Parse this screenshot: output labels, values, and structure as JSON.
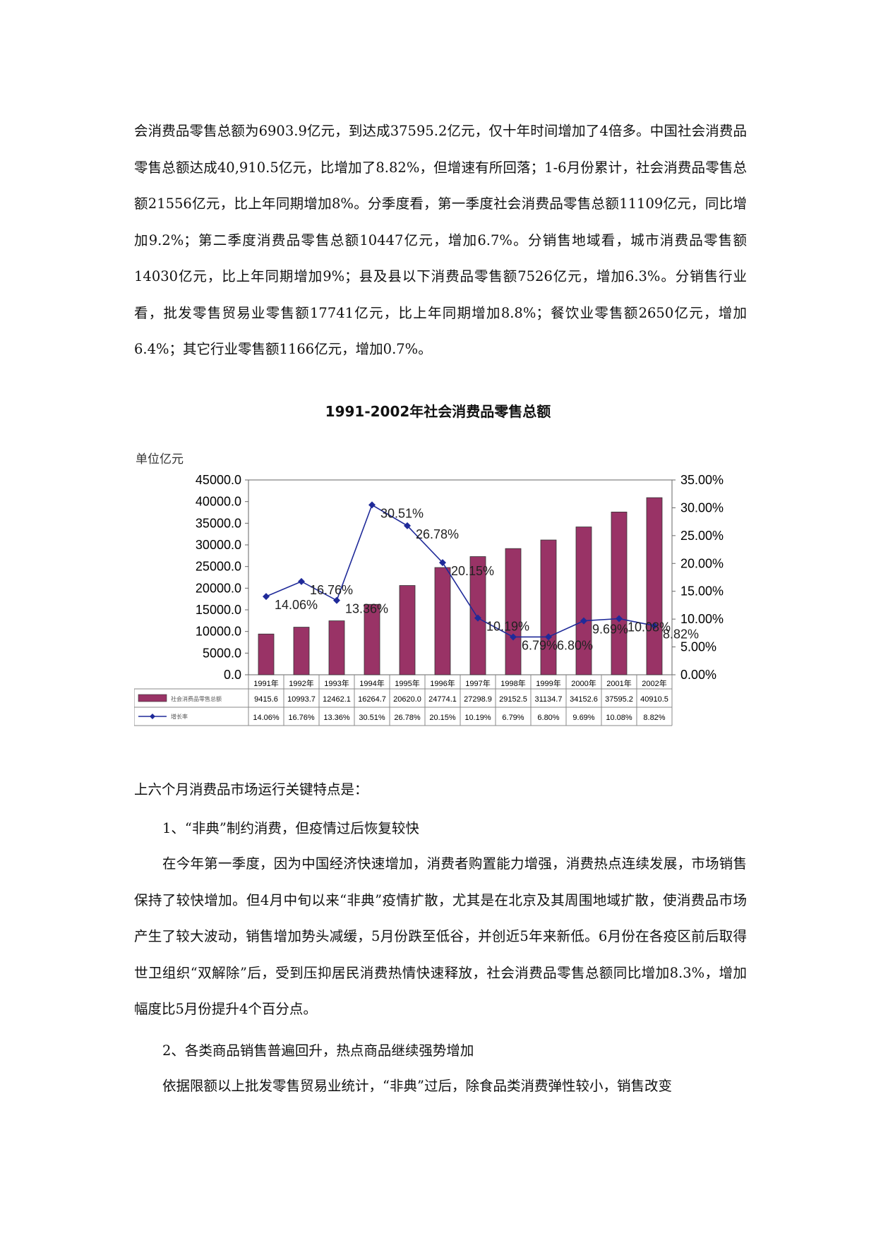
{
  "paragraphs": {
    "intro": "会消费品零售总额为6903.9亿元，到达成37595.2亿元，仅十年时间增加了4倍多。中国社会消费品零售总额达成40,910.5亿元，比增加了8.82%，但增速有所回落；1-6月份累计，社会消费品零售总额21556亿元，比上年同期增加8%。分季度看，第一季度社会消费品零售总额11109亿元，同比增加9.2%；第二季度消费品零售总额10447亿元，增加6.7%。分销售地域看，城市消费品零售额14030亿元，比上年同期增加9%；县及县以下消费品零售额7526亿元，增加6.3%。分销售行业看，批发零售贸易业零售额17741亿元，比上年同期增加8.8%；餐饮业零售额2650亿元，增加6.4%；其它行业零售额1166亿元，增加0.7%。",
    "market_intro": "上六个月消费品市场运行关键特点是：",
    "point1_heading": "1、“非典”制约消费，但疫情过后恢复较快",
    "point1_body": "在今年第一季度，因为中国经济快速增加，消费者购置能力增强，消费热点连续发展，市场销售保持了较快增加。但4月中旬以来“非典”疫情扩散，尤其是在北京及其周围地域扩散，使消费品市场产生了较大波动，销售增加势头减缓，5月份跌至低谷，并创近5年来新低。6月份在各疫区前后取得世卫组织“双解除”后，受到压抑居民消费热情快速释放，社会消费品零售总额同比增加8.3%，增加幅度比5月份提升4个百分点。",
    "point2_heading": "2、各类商品销售普遍回升，热点商品继续强势增加",
    "point2_body": "依据限额以上批发零售贸易业统计，“非典”过后，除食品类消费弹性较小，销售改变"
  },
  "chart_data": {
    "type": "bar",
    "title": "1991-2002年社会消费品零售总额",
    "unit_label": "单位亿元",
    "categories": [
      "1991年",
      "1992年",
      "1993年",
      "1994年",
      "1995年",
      "1996年",
      "1997年",
      "1998年",
      "1999年",
      "2000年",
      "2001年",
      "2002年"
    ],
    "series": [
      {
        "name": "社会消费品零售总额",
        "type": "bar",
        "axis": "left",
        "color": "#993366",
        "values": [
          9415.6,
          10993.7,
          12462.1,
          16264.7,
          20620.0,
          24774.1,
          27298.9,
          29152.5,
          31134.7,
          34152.6,
          37595.2,
          40910.5
        ],
        "table_text": [
          "9415.6",
          "10993.7",
          "12462.1",
          "16264.7",
          "20620.0",
          "24774.1",
          "27298.9",
          "29152.5",
          "31134.7",
          "34152.6",
          "37595.2",
          "40910.5"
        ]
      },
      {
        "name": "增长率",
        "type": "line",
        "axis": "right",
        "color": "#1f2a99",
        "values": [
          14.06,
          16.76,
          13.36,
          30.51,
          26.78,
          20.15,
          10.19,
          6.79,
          6.8,
          9.69,
          10.08,
          8.82
        ],
        "labels": [
          "14.06%",
          "16.76%",
          "13.36%",
          "30.51%",
          "26.78%",
          "20.15%",
          "10.19%",
          "6.79%",
          "6.80%",
          "9.69%",
          "10.08%",
          "8.82%"
        ]
      }
    ],
    "y_left": {
      "min": 0,
      "max": 45000,
      "ticks": [
        "0.0",
        "5000.0",
        "10000.0",
        "15000.0",
        "20000.0",
        "25000.0",
        "30000.0",
        "35000.0",
        "40000.0",
        "45000.0"
      ]
    },
    "y_right": {
      "min": 0,
      "max": 35,
      "ticks": [
        "0.00%",
        "5.00%",
        "10.00%",
        "15.00%",
        "20.00%",
        "25.00%",
        "30.00%",
        "35.00%"
      ]
    },
    "grid": false,
    "legend": "data-table-below"
  }
}
